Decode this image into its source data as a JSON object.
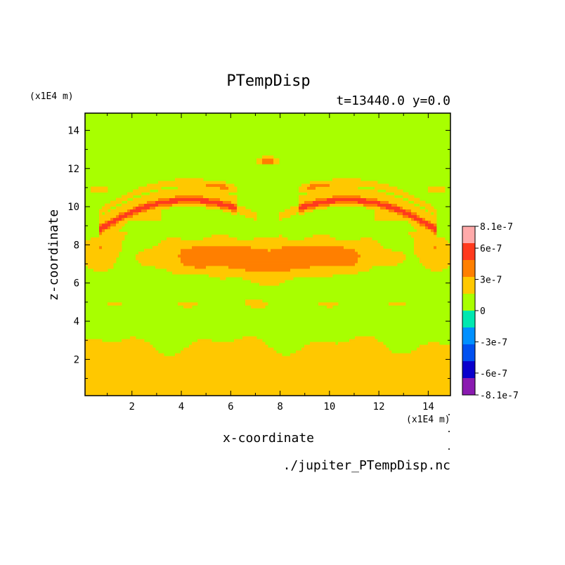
{
  "chart_data": {
    "type": "heatmap",
    "title": "PTempDisp",
    "subtitle": "t=13440.0 y=0.0",
    "xlabel": "x-coordinate",
    "ylabel": "z-coordinate",
    "x_unit": "(x1E4 m)",
    "y_unit": "(x1E4 m)",
    "source_file": "./jupiter_PTempDisp.nc",
    "xlim": [
      0.1,
      14.9
    ],
    "ylim": [
      0.1,
      14.9
    ],
    "x_ticks": [
      {
        "value": 2,
        "label": "2"
      },
      {
        "value": 4,
        "label": "4"
      },
      {
        "value": 6,
        "label": "6"
      },
      {
        "value": 8,
        "label": "8"
      },
      {
        "value": 10,
        "label": "10"
      },
      {
        "value": 12,
        "label": "12"
      },
      {
        "value": 14,
        "label": "14"
      }
    ],
    "y_ticks": [
      {
        "value": 2,
        "label": "2"
      },
      {
        "value": 4,
        "label": "4"
      },
      {
        "value": 6,
        "label": "6"
      },
      {
        "value": 8,
        "label": "8"
      },
      {
        "value": 10,
        "label": "10"
      },
      {
        "value": 12,
        "label": "12"
      },
      {
        "value": 14,
        "label": "14"
      }
    ],
    "colorbar": {
      "levels": [
        -8.1e-07,
        -6.075e-07,
        -4.05e-07,
        -2.025e-07,
        0,
        2.025e-07,
        4.05e-07,
        6.075e-07,
        8.1e-07
      ],
      "colors": [
        "#8a1ab0",
        "#0a00cc",
        "#0050f0",
        "#0090ff",
        "#00e8b0",
        "#a8ff00",
        "#ffc800",
        "#ff7f00",
        "#ff3a1e",
        "#ffaaaa"
      ],
      "labels": [
        {
          "value": 8.1e-07,
          "label": "8.1e-7"
        },
        {
          "value": 6e-07,
          "label": "6e-7"
        },
        {
          "value": 3e-07,
          "label": "3e-7"
        },
        {
          "value": 0,
          "label": "0"
        },
        {
          "value": -3e-07,
          "label": "-3e-7"
        },
        {
          "value": -6e-07,
          "label": "-6e-7"
        },
        {
          "value": -8.1e-07,
          "label": "-8.1e-7"
        }
      ]
    },
    "field_levels": [
      {
        "level": 0,
        "value": 1e-07
      },
      {
        "level": 1,
        "value": 3e-07
      },
      {
        "level": 2,
        "value": 5e-07
      },
      {
        "level": 3,
        "value": 7e-07
      }
    ]
  }
}
